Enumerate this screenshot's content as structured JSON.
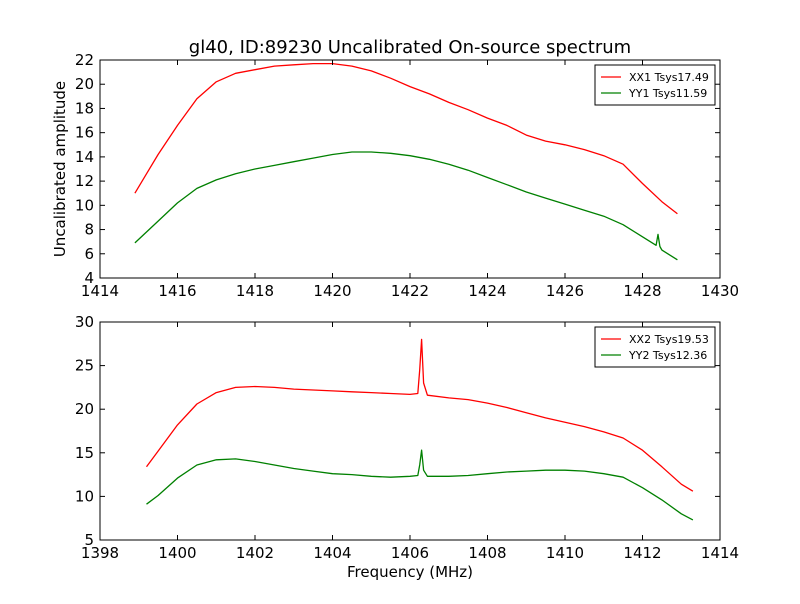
{
  "figure": {
    "title": "gl40, ID:89230 Uncalibrated On-source spectrum"
  },
  "chart_data": [
    {
      "type": "line",
      "title": "gl40, ID:89230 Uncalibrated On-source spectrum",
      "xlabel": "",
      "ylabel": "Uncalibrated amplitude",
      "xlim": [
        1414,
        1430
      ],
      "ylim": [
        4,
        22
      ],
      "xticks": [
        1414,
        1416,
        1418,
        1420,
        1422,
        1424,
        1426,
        1428,
        1430
      ],
      "yticks": [
        4,
        6,
        8,
        10,
        12,
        14,
        16,
        18,
        20,
        22
      ],
      "grid": false,
      "legend_position": "top-right",
      "series": [
        {
          "name": "XX1 Tsys17.49",
          "color": "#ff0000",
          "x": [
            1414.9,
            1415.2,
            1415.5,
            1416.0,
            1416.5,
            1417.0,
            1417.5,
            1418.0,
            1418.5,
            1419.0,
            1419.5,
            1420.0,
            1420.5,
            1421.0,
            1421.5,
            1422.0,
            1422.5,
            1423.0,
            1423.5,
            1424.0,
            1424.5,
            1425.0,
            1425.5,
            1426.0,
            1426.5,
            1427.0,
            1427.5,
            1428.0,
            1428.5,
            1428.9
          ],
          "values": [
            11.0,
            12.6,
            14.2,
            16.6,
            18.8,
            20.2,
            20.9,
            21.2,
            21.5,
            21.6,
            21.7,
            21.7,
            21.5,
            21.1,
            20.5,
            19.8,
            19.2,
            18.5,
            17.9,
            17.2,
            16.6,
            15.8,
            15.3,
            15.0,
            14.6,
            14.1,
            13.4,
            11.8,
            10.3,
            9.3
          ]
        },
        {
          "name": "YY1 Tsys11.59",
          "color": "#008000",
          "x": [
            1414.9,
            1415.2,
            1415.5,
            1416.0,
            1416.5,
            1417.0,
            1417.5,
            1418.0,
            1418.5,
            1419.0,
            1419.5,
            1420.0,
            1420.5,
            1421.0,
            1421.5,
            1422.0,
            1422.5,
            1423.0,
            1423.5,
            1424.0,
            1424.5,
            1425.0,
            1425.5,
            1426.0,
            1426.5,
            1427.0,
            1427.5,
            1428.0,
            1428.35,
            1428.4,
            1428.45,
            1428.5,
            1428.9
          ],
          "values": [
            6.9,
            7.8,
            8.7,
            10.2,
            11.4,
            12.1,
            12.6,
            13.0,
            13.3,
            13.6,
            13.9,
            14.2,
            14.4,
            14.4,
            14.3,
            14.1,
            13.8,
            13.4,
            12.9,
            12.3,
            11.7,
            11.1,
            10.6,
            10.1,
            9.6,
            9.1,
            8.4,
            7.4,
            6.7,
            7.6,
            6.6,
            6.3,
            5.5
          ]
        }
      ]
    },
    {
      "type": "line",
      "title": "",
      "xlabel": "Frequency (MHz)",
      "ylabel": "",
      "xlim": [
        1398,
        1414
      ],
      "ylim": [
        5,
        30
      ],
      "xticks": [
        1398,
        1400,
        1402,
        1404,
        1406,
        1408,
        1410,
        1412,
        1414
      ],
      "yticks": [
        5,
        10,
        15,
        20,
        25,
        30
      ],
      "grid": false,
      "legend_position": "top-right",
      "series": [
        {
          "name": "XX2 Tsys19.53",
          "color": "#ff0000",
          "x": [
            1399.2,
            1399.5,
            1400.0,
            1400.5,
            1401.0,
            1401.5,
            1402.0,
            1402.5,
            1403.0,
            1403.5,
            1404.0,
            1404.5,
            1405.0,
            1405.5,
            1406.0,
            1406.2,
            1406.25,
            1406.3,
            1406.35,
            1406.45,
            1407.0,
            1407.5,
            1408.0,
            1408.5,
            1409.0,
            1409.5,
            1410.0,
            1410.5,
            1411.0,
            1411.5,
            1412.0,
            1412.5,
            1413.0,
            1413.3
          ],
          "values": [
            13.4,
            15.2,
            18.2,
            20.6,
            21.9,
            22.5,
            22.6,
            22.5,
            22.3,
            22.2,
            22.1,
            22.0,
            21.9,
            21.8,
            21.7,
            21.8,
            24.5,
            28.0,
            23.0,
            21.6,
            21.3,
            21.1,
            20.7,
            20.2,
            19.6,
            19.0,
            18.5,
            18.0,
            17.4,
            16.7,
            15.3,
            13.4,
            11.4,
            10.6
          ]
        },
        {
          "name": "YY2 Tsys12.36",
          "color": "#008000",
          "x": [
            1399.2,
            1399.5,
            1400.0,
            1400.5,
            1401.0,
            1401.5,
            1402.0,
            1402.5,
            1403.0,
            1403.5,
            1404.0,
            1404.5,
            1405.0,
            1405.5,
            1406.0,
            1406.2,
            1406.25,
            1406.3,
            1406.35,
            1406.45,
            1407.0,
            1407.5,
            1408.0,
            1408.5,
            1409.0,
            1409.5,
            1410.0,
            1410.5,
            1411.0,
            1411.5,
            1412.0,
            1412.5,
            1413.0,
            1413.3
          ],
          "values": [
            9.1,
            10.1,
            12.1,
            13.6,
            14.2,
            14.3,
            14.0,
            13.6,
            13.2,
            12.9,
            12.6,
            12.5,
            12.3,
            12.2,
            12.3,
            12.4,
            13.6,
            15.3,
            13.0,
            12.3,
            12.3,
            12.4,
            12.6,
            12.8,
            12.9,
            13.0,
            13.0,
            12.9,
            12.6,
            12.2,
            11.0,
            9.6,
            8.0,
            7.3
          ]
        }
      ]
    }
  ]
}
